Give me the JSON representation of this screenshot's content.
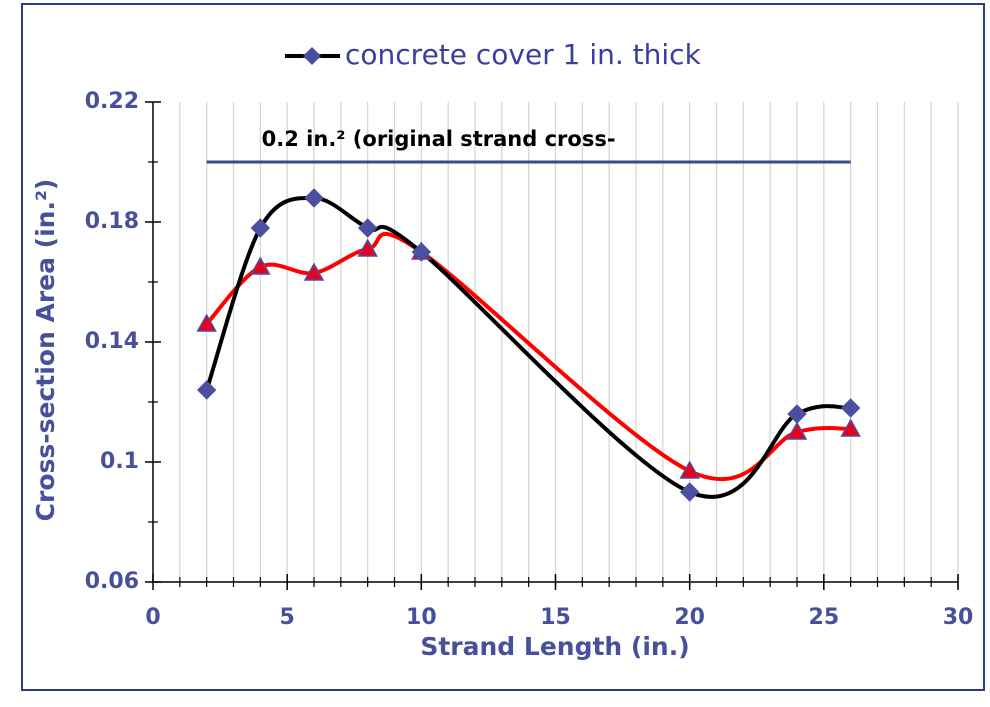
{
  "chart_data": {
    "type": "line",
    "legend_text": "concrete cover 1 in. thick",
    "xlabel": "Strand Length (in.)",
    "ylabel": "Cross-section Area (in.²)",
    "annotation": {
      "text": "0.2 in.² (original strand cross-",
      "y": 0.2,
      "x": [
        2,
        26
      ],
      "color": "#3a4a8a"
    },
    "x": [
      2,
      4,
      6,
      8,
      10,
      20,
      24,
      26
    ],
    "series": [
      {
        "name": "concrete cover 1 in. thick",
        "color": "#000000",
        "marker": "diamond",
        "marker_color": "#4a4fa0",
        "values": [
          0.124,
          0.178,
          0.188,
          0.178,
          0.17,
          0.09,
          0.116,
          0.118
        ]
      },
      {
        "color": "#ff0000",
        "marker": "triangle",
        "marker_color": "#e8001c",
        "values": [
          0.146,
          0.165,
          0.163,
          0.171,
          0.17,
          0.097,
          0.11,
          0.111
        ]
      }
    ],
    "xlim": [
      0,
      30
    ],
    "xticks": [
      0,
      5,
      10,
      15,
      20,
      25,
      30
    ],
    "ylim": [
      0.06,
      0.22
    ],
    "yticks": [
      0.06,
      0.1,
      0.14,
      0.18,
      0.22
    ],
    "x_minor_step": 1,
    "grid": "x-minor",
    "smooth": true
  }
}
